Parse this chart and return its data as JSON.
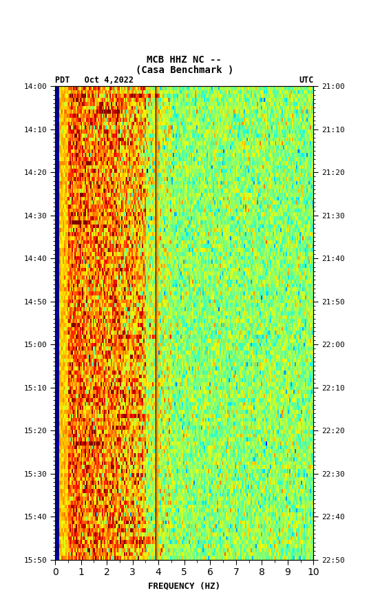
{
  "title_line1": "MCB HHZ NC --",
  "title_line2": "(Casa Benchmark )",
  "left_label": "PDT   Oct 4,2022",
  "right_label": "UTC",
  "xlabel": "FREQUENCY (HZ)",
  "freq_min": 0,
  "freq_max": 10,
  "time_start_label": "14:00",
  "time_end_label": "15:50",
  "utc_start_label": "21:00",
  "utc_end_label": "22:50",
  "time_ticks_pdt": [
    "14:00",
    "14:10",
    "14:20",
    "14:30",
    "14:40",
    "14:50",
    "15:00",
    "15:10",
    "15:20",
    "15:30",
    "15:40",
    "15:50"
  ],
  "time_ticks_utc": [
    "21:00",
    "21:10",
    "21:20",
    "21:30",
    "21:40",
    "21:50",
    "22:00",
    "22:10",
    "22:20",
    "22:30",
    "22:40",
    "22:50"
  ],
  "vertical_line_freq": 3.9,
  "fig_width": 5.52,
  "fig_height": 8.93,
  "background_color": "#ffffff",
  "colormap": "jet",
  "seed": 42,
  "n_time": 120,
  "n_freq": 200
}
